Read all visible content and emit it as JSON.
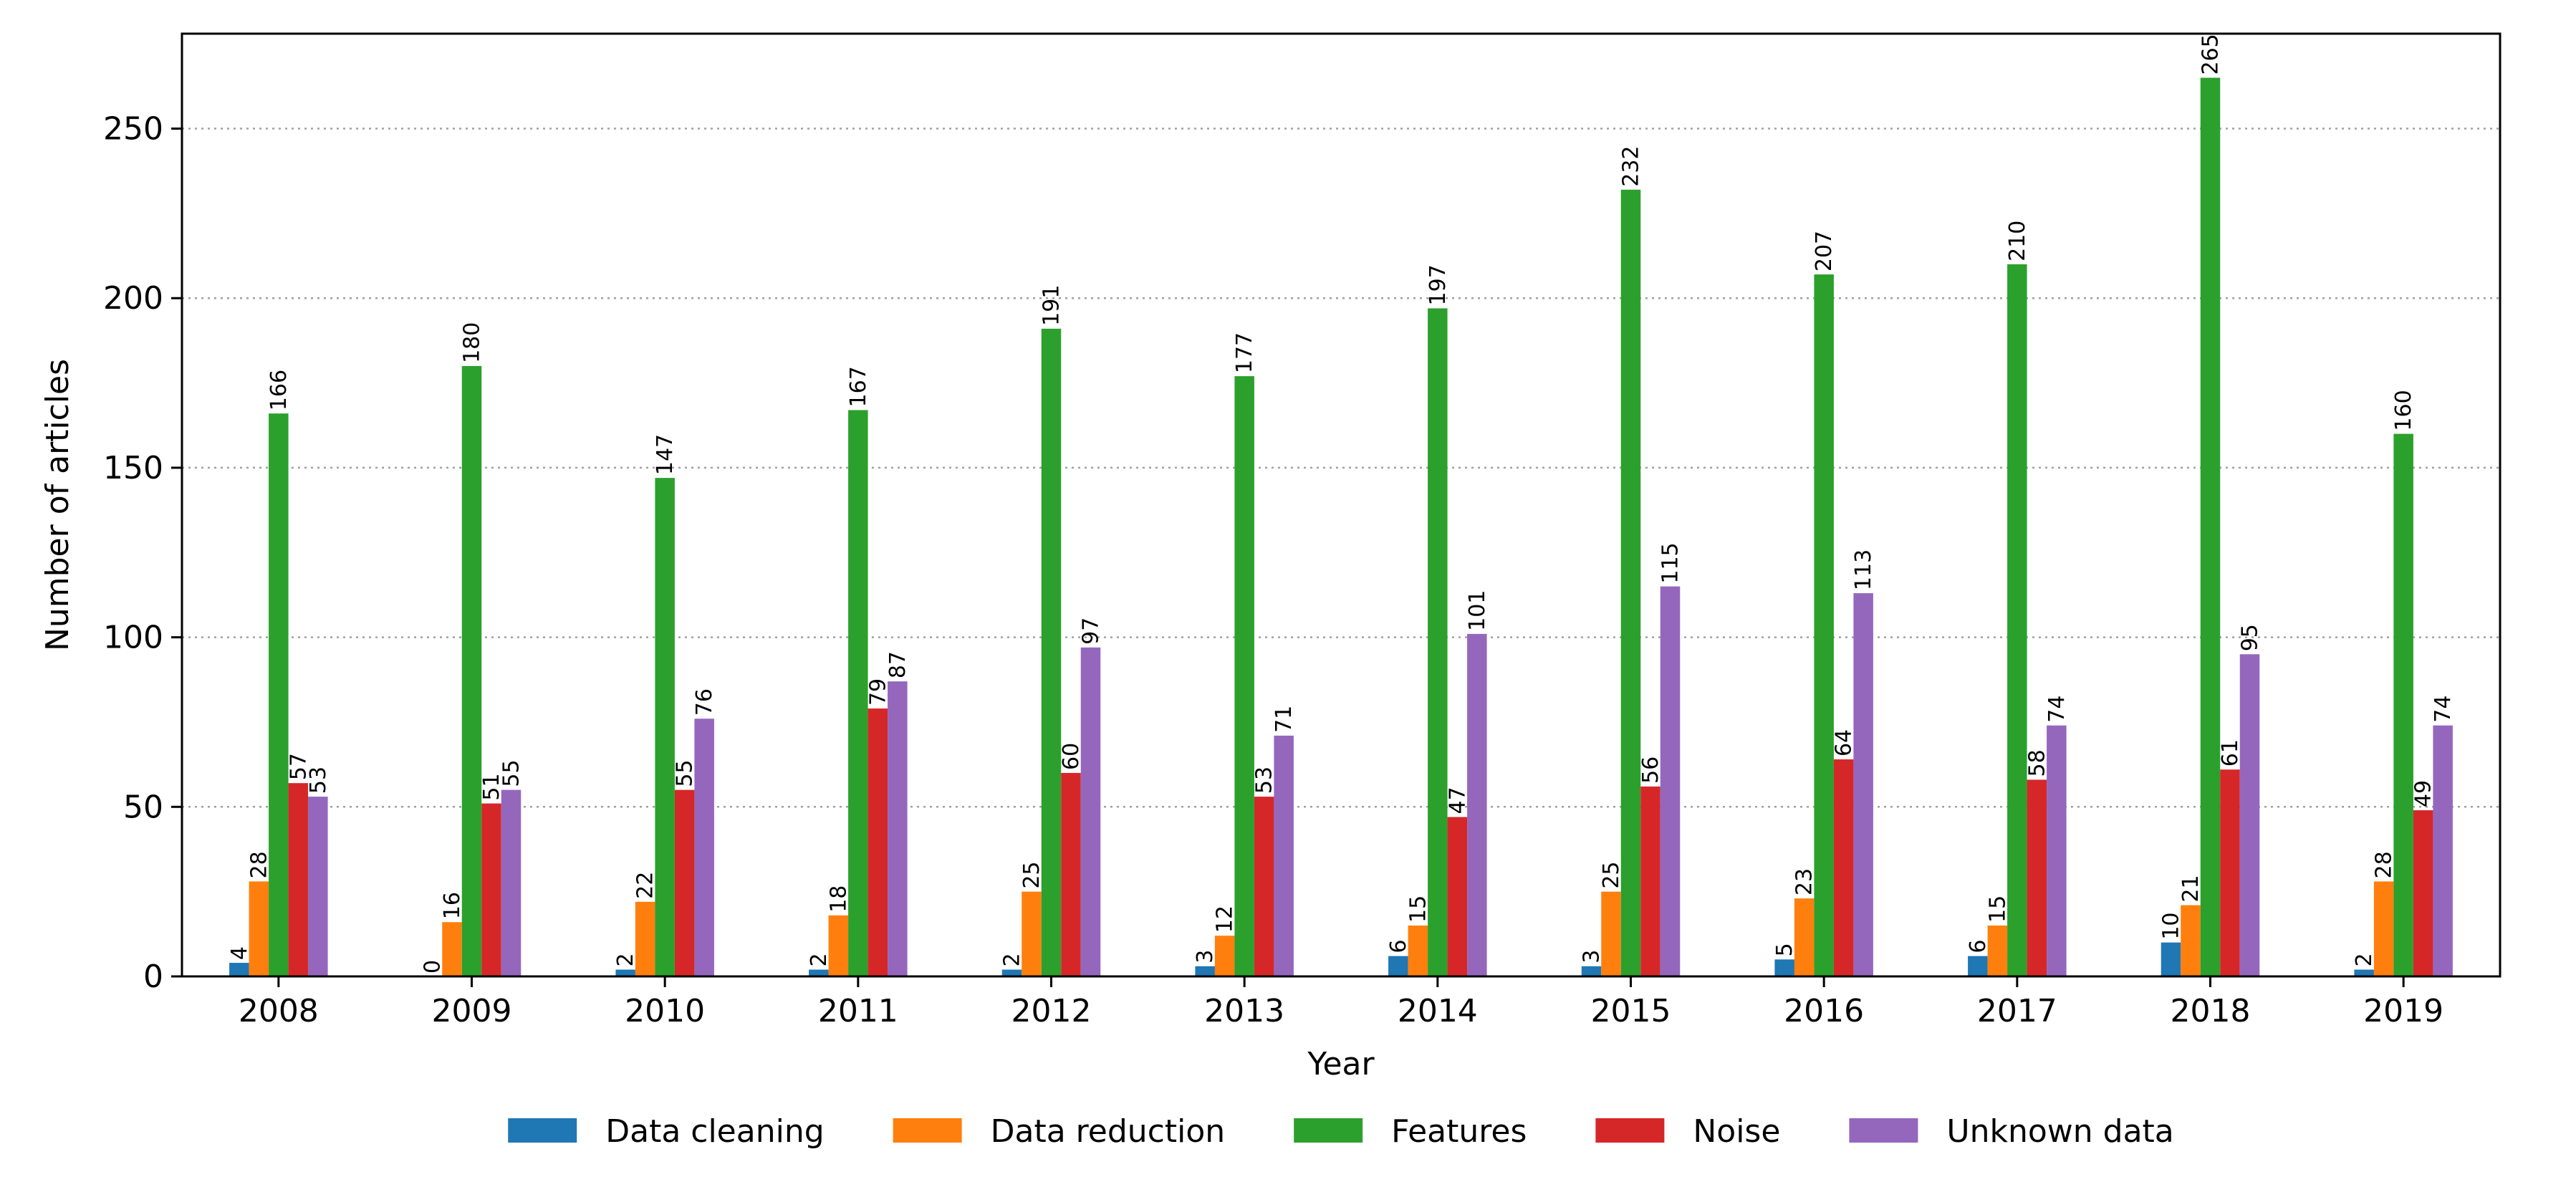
{
  "chart_data": {
    "type": "bar",
    "title": "",
    "xlabel": "Year",
    "ylabel": "Number of articles",
    "ylim": [
      0,
      278
    ],
    "yticks": [
      0,
      50,
      100,
      150,
      200,
      250
    ],
    "grid": "horizontal dotted",
    "legend_position": "bottom-center",
    "categories": [
      "2008",
      "2009",
      "2010",
      "2011",
      "2012",
      "2013",
      "2014",
      "2015",
      "2016",
      "2017",
      "2018",
      "2019"
    ],
    "series": [
      {
        "name": "Data cleaning",
        "color": "#1f77b4",
        "values": [
          4,
          0,
          2,
          2,
          2,
          3,
          6,
          3,
          5,
          6,
          10,
          2
        ]
      },
      {
        "name": "Data reduction",
        "color": "#ff7f0e",
        "values": [
          28,
          16,
          22,
          18,
          25,
          12,
          15,
          25,
          23,
          15,
          21,
          28
        ]
      },
      {
        "name": "Features",
        "color": "#2ca02c",
        "values": [
          166,
          180,
          147,
          167,
          191,
          177,
          197,
          232,
          207,
          210,
          265,
          160
        ]
      },
      {
        "name": "Noise",
        "color": "#d62728",
        "values": [
          57,
          51,
          55,
          79,
          60,
          53,
          47,
          56,
          64,
          58,
          61,
          49
        ]
      },
      {
        "name": "Unknown data",
        "color": "#9467bd",
        "values": [
          53,
          55,
          76,
          87,
          97,
          71,
          101,
          115,
          113,
          74,
          95,
          74
        ]
      }
    ]
  }
}
